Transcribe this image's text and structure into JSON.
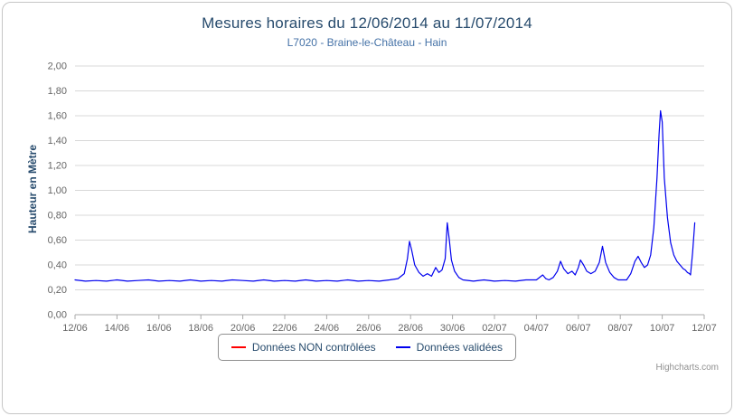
{
  "header": {
    "title": "Mesures horaires du 12/06/2014 au 11/07/2014",
    "subtitle": "L7020 - Braine-le-Château - Hain"
  },
  "chart_data": {
    "type": "line",
    "title": "Mesures horaires du 12/06/2014 au 11/07/2014",
    "subtitle": "L7020 - Braine-le-Château - Hain",
    "xlabel": "",
    "ylabel": "Hauteur en Mètre",
    "ylim": [
      0,
      2.0
    ],
    "y_tick_step": 0.2,
    "y_tick_labels": [
      "0,00",
      "0,20",
      "0,40",
      "0,60",
      "0,80",
      "1,00",
      "1,20",
      "1,40",
      "1,60",
      "1,80",
      "2,00"
    ],
    "x_tick_labels": [
      "12/06",
      "14/06",
      "16/06",
      "18/06",
      "20/06",
      "22/06",
      "24/06",
      "26/06",
      "28/06",
      "30/06",
      "02/07",
      "04/07",
      "06/07",
      "08/07",
      "10/07",
      "12/07"
    ],
    "x_range_days": [
      0,
      30
    ],
    "x_tick_step_days": 2,
    "grid": "horizontal",
    "legend_position": "bottom",
    "axis_label_color": "#666666",
    "grid_color": "#d8d8d8",
    "axis_line_color": "#a8a8a8",
    "series": [
      {
        "name": "Données NON contrôlées",
        "color": "#ff0000",
        "points": []
      },
      {
        "name": "Données validées",
        "color": "#0000ee",
        "points": [
          [
            0,
            0.28
          ],
          [
            0.5,
            0.27
          ],
          [
            1,
            0.275
          ],
          [
            1.5,
            0.27
          ],
          [
            2,
            0.28
          ],
          [
            2.5,
            0.27
          ],
          [
            3,
            0.275
          ],
          [
            3.5,
            0.28
          ],
          [
            4,
            0.27
          ],
          [
            4.5,
            0.275
          ],
          [
            5,
            0.27
          ],
          [
            5.5,
            0.28
          ],
          [
            6,
            0.27
          ],
          [
            6.5,
            0.275
          ],
          [
            7,
            0.27
          ],
          [
            7.5,
            0.28
          ],
          [
            8,
            0.275
          ],
          [
            8.5,
            0.27
          ],
          [
            9,
            0.28
          ],
          [
            9.5,
            0.27
          ],
          [
            10,
            0.275
          ],
          [
            10.5,
            0.27
          ],
          [
            11,
            0.28
          ],
          [
            11.5,
            0.27
          ],
          [
            12,
            0.275
          ],
          [
            12.5,
            0.27
          ],
          [
            13,
            0.28
          ],
          [
            13.5,
            0.27
          ],
          [
            14,
            0.275
          ],
          [
            14.5,
            0.27
          ],
          [
            15,
            0.28
          ],
          [
            15.4,
            0.29
          ],
          [
            15.7,
            0.33
          ],
          [
            15.85,
            0.45
          ],
          [
            15.95,
            0.59
          ],
          [
            16.05,
            0.52
          ],
          [
            16.2,
            0.4
          ],
          [
            16.4,
            0.34
          ],
          [
            16.6,
            0.31
          ],
          [
            16.8,
            0.33
          ],
          [
            17,
            0.31
          ],
          [
            17.2,
            0.38
          ],
          [
            17.35,
            0.34
          ],
          [
            17.5,
            0.36
          ],
          [
            17.65,
            0.45
          ],
          [
            17.75,
            0.74
          ],
          [
            17.85,
            0.6
          ],
          [
            17.95,
            0.44
          ],
          [
            18.1,
            0.35
          ],
          [
            18.3,
            0.3
          ],
          [
            18.5,
            0.28
          ],
          [
            19,
            0.27
          ],
          [
            19.5,
            0.28
          ],
          [
            20,
            0.27
          ],
          [
            20.5,
            0.275
          ],
          [
            21,
            0.27
          ],
          [
            21.5,
            0.28
          ],
          [
            22,
            0.28
          ],
          [
            22.3,
            0.32
          ],
          [
            22.45,
            0.29
          ],
          [
            22.6,
            0.28
          ],
          [
            22.8,
            0.3
          ],
          [
            23,
            0.35
          ],
          [
            23.15,
            0.43
          ],
          [
            23.3,
            0.37
          ],
          [
            23.5,
            0.33
          ],
          [
            23.7,
            0.35
          ],
          [
            23.85,
            0.32
          ],
          [
            24,
            0.38
          ],
          [
            24.1,
            0.44
          ],
          [
            24.25,
            0.4
          ],
          [
            24.4,
            0.35
          ],
          [
            24.6,
            0.33
          ],
          [
            24.8,
            0.35
          ],
          [
            25,
            0.42
          ],
          [
            25.15,
            0.55
          ],
          [
            25.3,
            0.42
          ],
          [
            25.5,
            0.34
          ],
          [
            25.7,
            0.3
          ],
          [
            25.9,
            0.28
          ],
          [
            26.1,
            0.28
          ],
          [
            26.3,
            0.28
          ],
          [
            26.5,
            0.33
          ],
          [
            26.7,
            0.43
          ],
          [
            26.85,
            0.47
          ],
          [
            27,
            0.42
          ],
          [
            27.15,
            0.38
          ],
          [
            27.3,
            0.4
          ],
          [
            27.45,
            0.48
          ],
          [
            27.6,
            0.7
          ],
          [
            27.75,
            1.1
          ],
          [
            27.85,
            1.45
          ],
          [
            27.92,
            1.64
          ],
          [
            28,
            1.55
          ],
          [
            28.1,
            1.1
          ],
          [
            28.25,
            0.78
          ],
          [
            28.4,
            0.58
          ],
          [
            28.55,
            0.48
          ],
          [
            28.7,
            0.43
          ],
          [
            28.85,
            0.4
          ],
          [
            29,
            0.37
          ],
          [
            29.1,
            0.36
          ],
          [
            29.2,
            0.34
          ],
          [
            29.3,
            0.33
          ],
          [
            29.35,
            0.32
          ],
          [
            29.45,
            0.5
          ],
          [
            29.55,
            0.74
          ]
        ]
      }
    ]
  },
  "credits": {
    "label": "Highcharts.com"
  }
}
